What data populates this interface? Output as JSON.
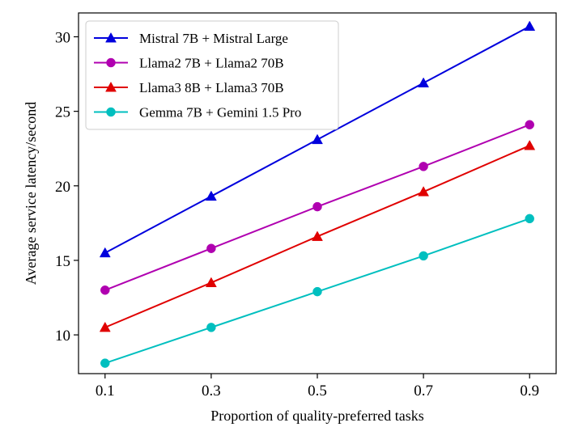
{
  "chart_data": {
    "type": "line",
    "title": "",
    "xlabel": "Proportion of quality-preferred tasks",
    "ylabel": "Average service latency/second",
    "x": [
      0.1,
      0.3,
      0.5,
      0.7,
      0.9
    ],
    "x_tick_labels": [
      "0.1",
      "0.3",
      "0.5",
      "0.7",
      "0.9"
    ],
    "y_ticks": [
      10,
      15,
      20,
      25,
      30
    ],
    "y_tick_labels": [
      "10",
      "15",
      "20",
      "25",
      "30"
    ],
    "xlim": [
      0.05,
      0.95
    ],
    "ylim": [
      7.4,
      31.6
    ],
    "grid": false,
    "legend_position": "top-left",
    "series": [
      {
        "name": "Mistral 7B + Mistral Large",
        "color": "#0000dd",
        "marker": "triangle",
        "values": [
          15.5,
          19.3,
          23.1,
          26.9,
          30.7
        ]
      },
      {
        "name": "Llama2 7B + Llama2 70B",
        "color": "#b000b0",
        "marker": "circle",
        "values": [
          13.0,
          15.8,
          18.6,
          21.3,
          24.1
        ]
      },
      {
        "name": "Llama3 8B + Llama3 70B",
        "color": "#e00000",
        "marker": "triangle",
        "values": [
          10.5,
          13.5,
          16.6,
          19.6,
          22.7
        ]
      },
      {
        "name": "Gemma 7B + Gemini 1.5 Pro",
        "color": "#00bfbf",
        "marker": "circle",
        "values": [
          8.1,
          10.5,
          12.9,
          15.3,
          17.8
        ]
      }
    ]
  }
}
